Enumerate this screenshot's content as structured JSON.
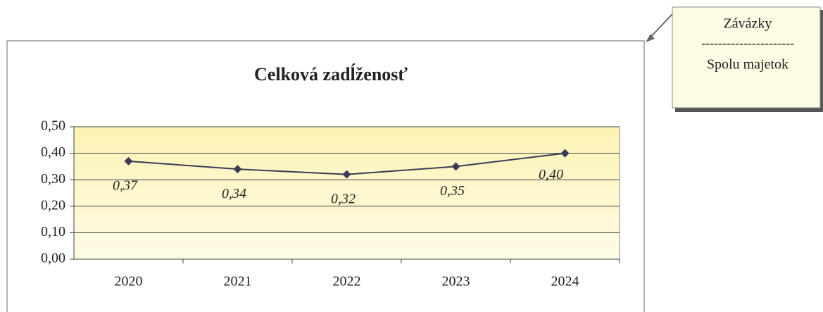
{
  "chart_data": {
    "type": "line",
    "title": "Celková zadĺženosť",
    "categories": [
      "2020",
      "2021",
      "2022",
      "2023",
      "2024"
    ],
    "series": [
      {
        "name": null,
        "color": "#3b3b55",
        "values": [
          0.37,
          0.34,
          0.32,
          0.35,
          0.4
        ],
        "value_labels": [
          "0,37",
          "0,34",
          "0,32",
          "0,35",
          "0,40"
        ]
      }
    ],
    "ylim": [
      0,
      0.5
    ],
    "yticks": [
      {
        "value": 0,
        "label": "0,00"
      },
      {
        "value": 0.1,
        "label": "0,10"
      },
      {
        "value": 0.2,
        "label": "0,20"
      },
      {
        "value": 0.3,
        "label": "0,30"
      },
      {
        "value": 0.4,
        "label": "0,40"
      },
      {
        "value": 0.5,
        "label": "0,50"
      }
    ],
    "grid": true,
    "annotation": {
      "numerator": "Závázky",
      "separator": "----------------------",
      "denominator": "Spolu majetok"
    }
  }
}
